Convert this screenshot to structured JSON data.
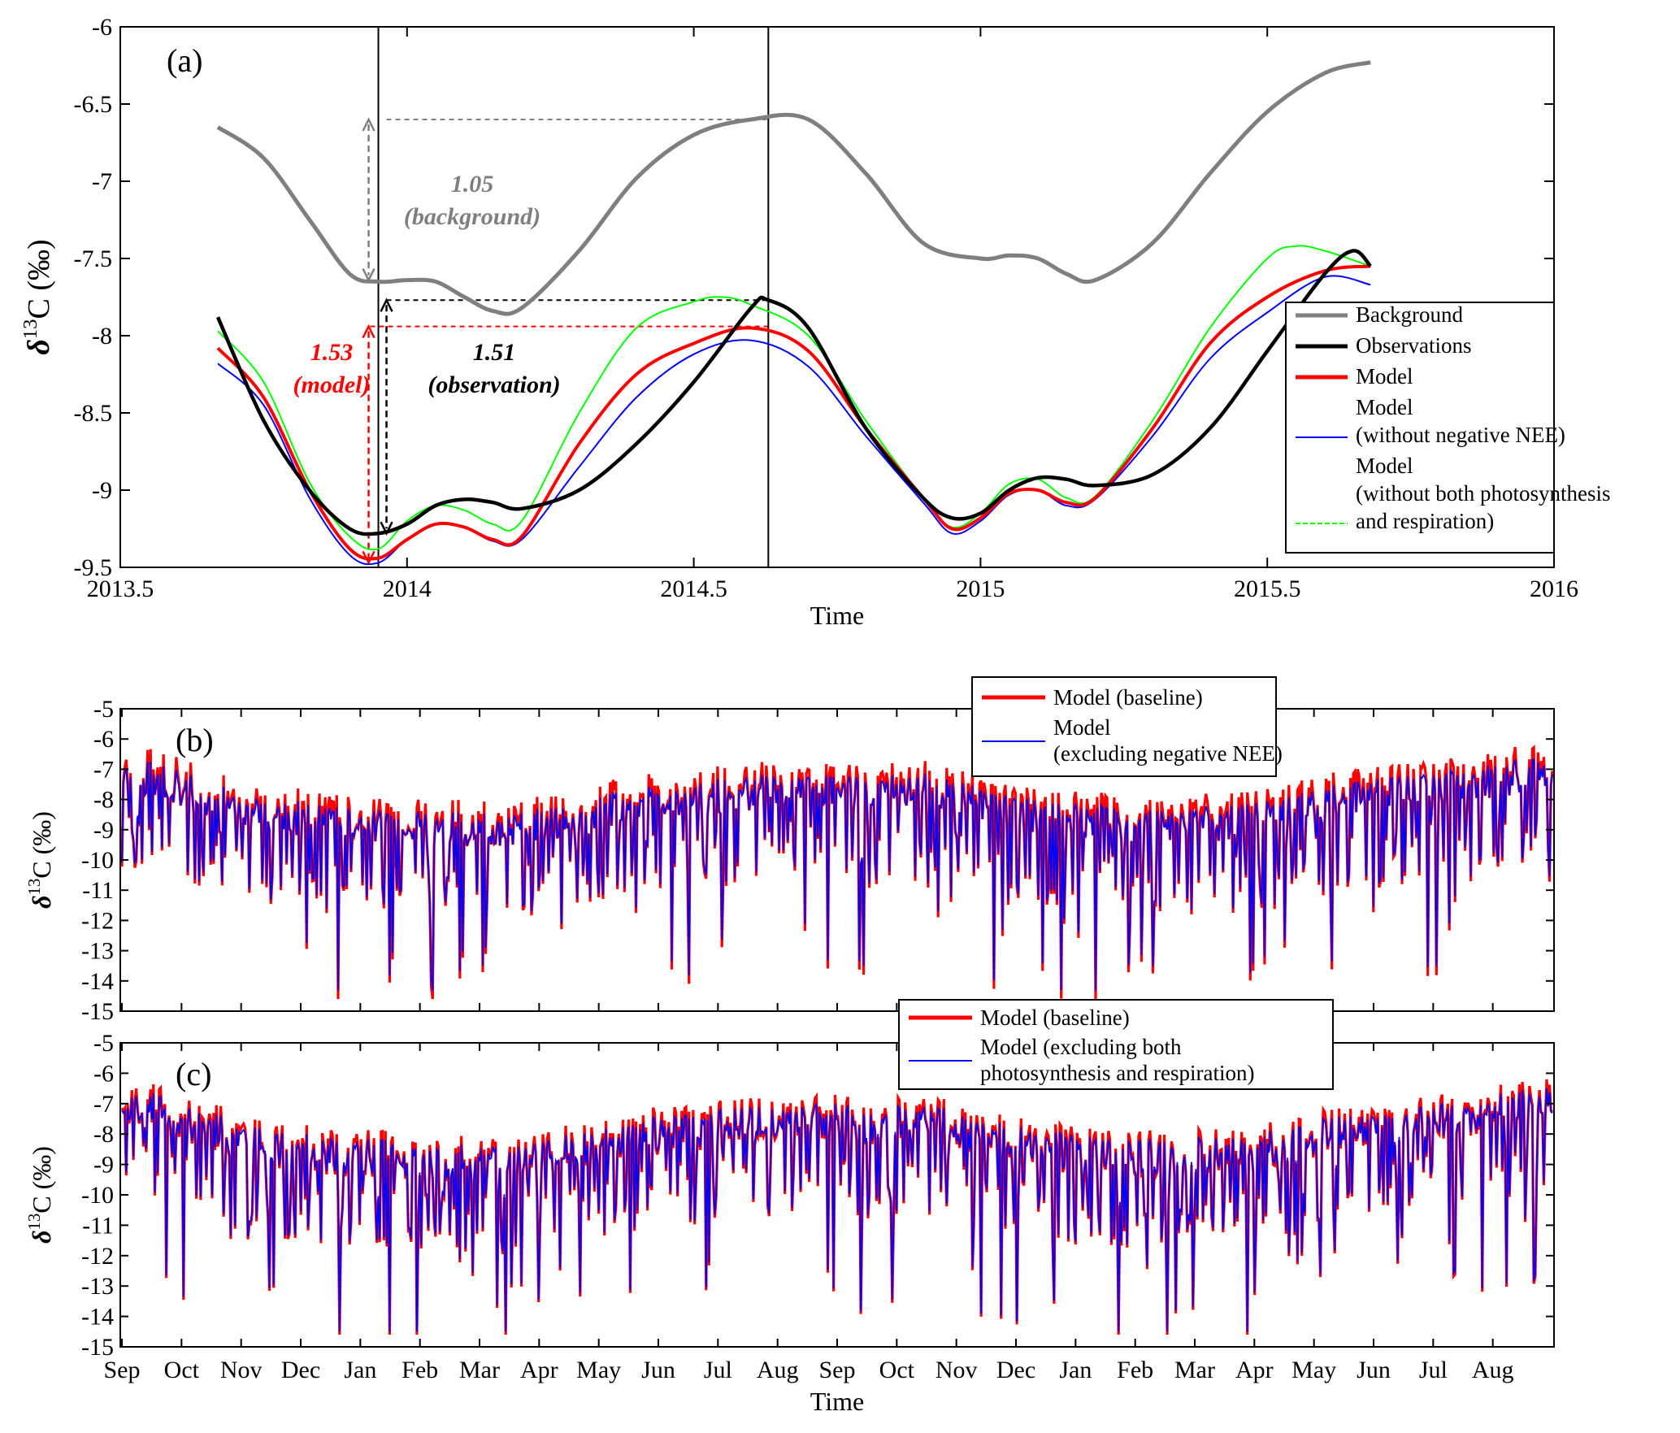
{
  "chart_data": [
    {
      "panel": "(a)",
      "type": "line",
      "xlabel": "Time",
      "ylabel": "δ13C (‰)",
      "xlim": [
        2013.5,
        2016
      ],
      "ylim": [
        -9.5,
        -6
      ],
      "xticks": [
        "2013.5",
        "2014",
        "2014.5",
        "2015",
        "2015.5",
        "2016"
      ],
      "yticks": [
        "-6",
        "-6.5",
        "-7",
        "-7.5",
        "-8",
        "-8.5",
        "-9",
        "-9.5"
      ],
      "vlines_x": [
        2013.95,
        2014.63
      ],
      "legend_position": "right",
      "series": [
        {
          "name": "Background",
          "color": "#7f7f7f",
          "x": [
            2013.67,
            2013.75,
            2013.83,
            2013.9,
            2013.95,
            2014.0,
            2014.05,
            2014.1,
            2014.15,
            2014.2,
            2014.3,
            2014.4,
            2014.5,
            2014.6,
            2014.7,
            2014.8,
            2014.9,
            2015.0,
            2015.05,
            2015.1,
            2015.15,
            2015.2,
            2015.3,
            2015.4,
            2015.5,
            2015.6,
            2015.68
          ],
          "y": [
            -6.65,
            -6.85,
            -7.25,
            -7.6,
            -7.65,
            -7.64,
            -7.65,
            -7.75,
            -7.84,
            -7.82,
            -7.45,
            -6.98,
            -6.7,
            -6.6,
            -6.6,
            -6.95,
            -7.4,
            -7.5,
            -7.48,
            -7.5,
            -7.6,
            -7.64,
            -7.4,
            -6.95,
            -6.55,
            -6.3,
            -6.23
          ]
        },
        {
          "name": "Observations",
          "color": "#000000",
          "x": [
            2013.67,
            2013.75,
            2013.83,
            2013.9,
            2013.95,
            2014.0,
            2014.05,
            2014.1,
            2014.15,
            2014.2,
            2014.3,
            2014.4,
            2014.5,
            2014.6,
            2014.63,
            2014.7,
            2014.8,
            2014.9,
            2014.95,
            2015.0,
            2015.05,
            2015.1,
            2015.15,
            2015.2,
            2015.3,
            2015.4,
            2015.5,
            2015.6,
            2015.65,
            2015.68
          ],
          "y": [
            -7.88,
            -8.55,
            -9.0,
            -9.25,
            -9.28,
            -9.22,
            -9.1,
            -9.06,
            -9.08,
            -9.12,
            -9.0,
            -8.7,
            -8.3,
            -7.82,
            -7.77,
            -7.95,
            -8.6,
            -9.05,
            -9.18,
            -9.15,
            -9.0,
            -8.92,
            -8.93,
            -8.97,
            -8.9,
            -8.6,
            -8.1,
            -7.6,
            -7.45,
            -7.55
          ]
        },
        {
          "name": "Model",
          "color": "#ff0000",
          "x": [
            2013.67,
            2013.75,
            2013.83,
            2013.9,
            2013.95,
            2014.0,
            2014.05,
            2014.1,
            2014.15,
            2014.2,
            2014.3,
            2014.4,
            2014.5,
            2014.6,
            2014.7,
            2014.8,
            2014.9,
            2014.95,
            2015.0,
            2015.05,
            2015.1,
            2015.15,
            2015.2,
            2015.3,
            2015.4,
            2015.5,
            2015.6,
            2015.68
          ],
          "y": [
            -8.08,
            -8.4,
            -9.0,
            -9.38,
            -9.44,
            -9.32,
            -9.22,
            -9.24,
            -9.32,
            -9.3,
            -8.7,
            -8.25,
            -8.05,
            -7.95,
            -8.1,
            -8.6,
            -9.05,
            -9.25,
            -9.18,
            -9.02,
            -9.0,
            -9.08,
            -9.05,
            -8.6,
            -8.05,
            -7.75,
            -7.58,
            -7.55
          ]
        },
        {
          "name": "Model\n(without negative NEE)",
          "color": "#0000ff",
          "x": [
            2013.67,
            2013.75,
            2013.83,
            2013.9,
            2013.95,
            2014.0,
            2014.05,
            2014.1,
            2014.15,
            2014.2,
            2014.3,
            2014.4,
            2014.5,
            2014.6,
            2014.7,
            2014.8,
            2014.9,
            2014.95,
            2015.0,
            2015.05,
            2015.1,
            2015.15,
            2015.2,
            2015.3,
            2015.4,
            2015.5,
            2015.6,
            2015.68
          ],
          "y": [
            -8.18,
            -8.45,
            -9.05,
            -9.42,
            -9.47,
            -9.32,
            -9.22,
            -9.24,
            -9.33,
            -9.32,
            -8.85,
            -8.4,
            -8.12,
            -8.03,
            -8.2,
            -8.65,
            -9.08,
            -9.28,
            -9.2,
            -9.03,
            -9.0,
            -9.1,
            -9.06,
            -8.65,
            -8.15,
            -7.85,
            -7.62,
            -7.67
          ]
        },
        {
          "name": "Model\n(without both photosynthesis\nand respiration)",
          "color": "#00ff00",
          "x": [
            2013.67,
            2013.75,
            2013.83,
            2013.9,
            2013.95,
            2014.0,
            2014.05,
            2014.1,
            2014.15,
            2014.2,
            2014.3,
            2014.4,
            2014.5,
            2014.55,
            2014.6,
            2014.7,
            2014.8,
            2014.9,
            2014.95,
            2015.0,
            2015.05,
            2015.1,
            2015.15,
            2015.2,
            2015.3,
            2015.4,
            2015.5,
            2015.55,
            2015.6,
            2015.68
          ],
          "y": [
            -7.97,
            -8.3,
            -8.95,
            -9.3,
            -9.38,
            -9.2,
            -9.1,
            -9.13,
            -9.22,
            -9.2,
            -8.5,
            -7.95,
            -7.78,
            -7.75,
            -7.8,
            -8.0,
            -8.55,
            -9.05,
            -9.24,
            -9.15,
            -8.96,
            -8.93,
            -9.05,
            -9.04,
            -8.55,
            -7.95,
            -7.5,
            -7.42,
            -7.45,
            -7.55
          ]
        }
      ],
      "annotations": [
        {
          "text": "1.05",
          "sub": "(background)",
          "color": "#7f7f7f"
        },
        {
          "text": "1.53",
          "sub": "(model)",
          "color": "#ff0000"
        },
        {
          "text": "1.51",
          "sub": "(observation)",
          "color": "#000000"
        }
      ]
    },
    {
      "panel": "(b)",
      "type": "line",
      "xlabel": "",
      "ylabel": "δ13C (‰)",
      "ylim": [
        -15,
        -5
      ],
      "yticks": [
        "-5",
        "-6",
        "-7",
        "-8",
        "-9",
        "-10",
        "-11",
        "-12",
        "-13",
        "-14",
        "-15"
      ],
      "months": [
        "Sep",
        "Oct",
        "Nov",
        "Dec",
        "Jan",
        "Feb",
        "Mar",
        "Apr",
        "May",
        "Jun",
        "Jul",
        "Aug",
        "Sep",
        "Oct",
        "Nov",
        "Dec",
        "Jan",
        "Feb",
        "Mar",
        "Apr",
        "May",
        "Jun",
        "Jul",
        "Aug"
      ],
      "upper_envelope_monthly": [
        -6.3,
        -7.0,
        -7.5,
        -7.8,
        -7.9,
        -8.0,
        -8.0,
        -7.7,
        -7.2,
        -7.0,
        -6.8,
        -6.6,
        -6.8,
        -6.7,
        -7.2,
        -7.6,
        -7.8,
        -7.8,
        -7.8,
        -7.5,
        -7.0,
        -6.8,
        -6.5,
        -6.2
      ],
      "series": [
        {
          "name": "Model (baseline)",
          "color": "#ff0000"
        },
        {
          "name": "Model\n(excluding negative NEE)",
          "color": "#0000ff"
        }
      ]
    },
    {
      "panel": "(c)",
      "type": "line",
      "xlabel": "Time",
      "ylabel": "δ13C (‰)",
      "ylim": [
        -15,
        -5
      ],
      "yticks": [
        "-5",
        "-6",
        "-7",
        "-8",
        "-9",
        "-10",
        "-11",
        "-12",
        "-13",
        "-14",
        "-15"
      ],
      "months": [
        "Sep",
        "Oct",
        "Nov",
        "Dec",
        "Jan",
        "Feb",
        "Mar",
        "Apr",
        "May",
        "Jun",
        "Jul",
        "Aug",
        "Sep",
        "Oct",
        "Nov",
        "Dec",
        "Jan",
        "Feb",
        "Mar",
        "Apr",
        "May",
        "Jun",
        "Jul",
        "Aug"
      ],
      "series": [
        {
          "name": "Model (baseline)",
          "color": "#ff0000"
        },
        {
          "name": "Model (excluding both\nphotosynthesis and respiration)",
          "color": "#0000ff"
        }
      ]
    }
  ]
}
